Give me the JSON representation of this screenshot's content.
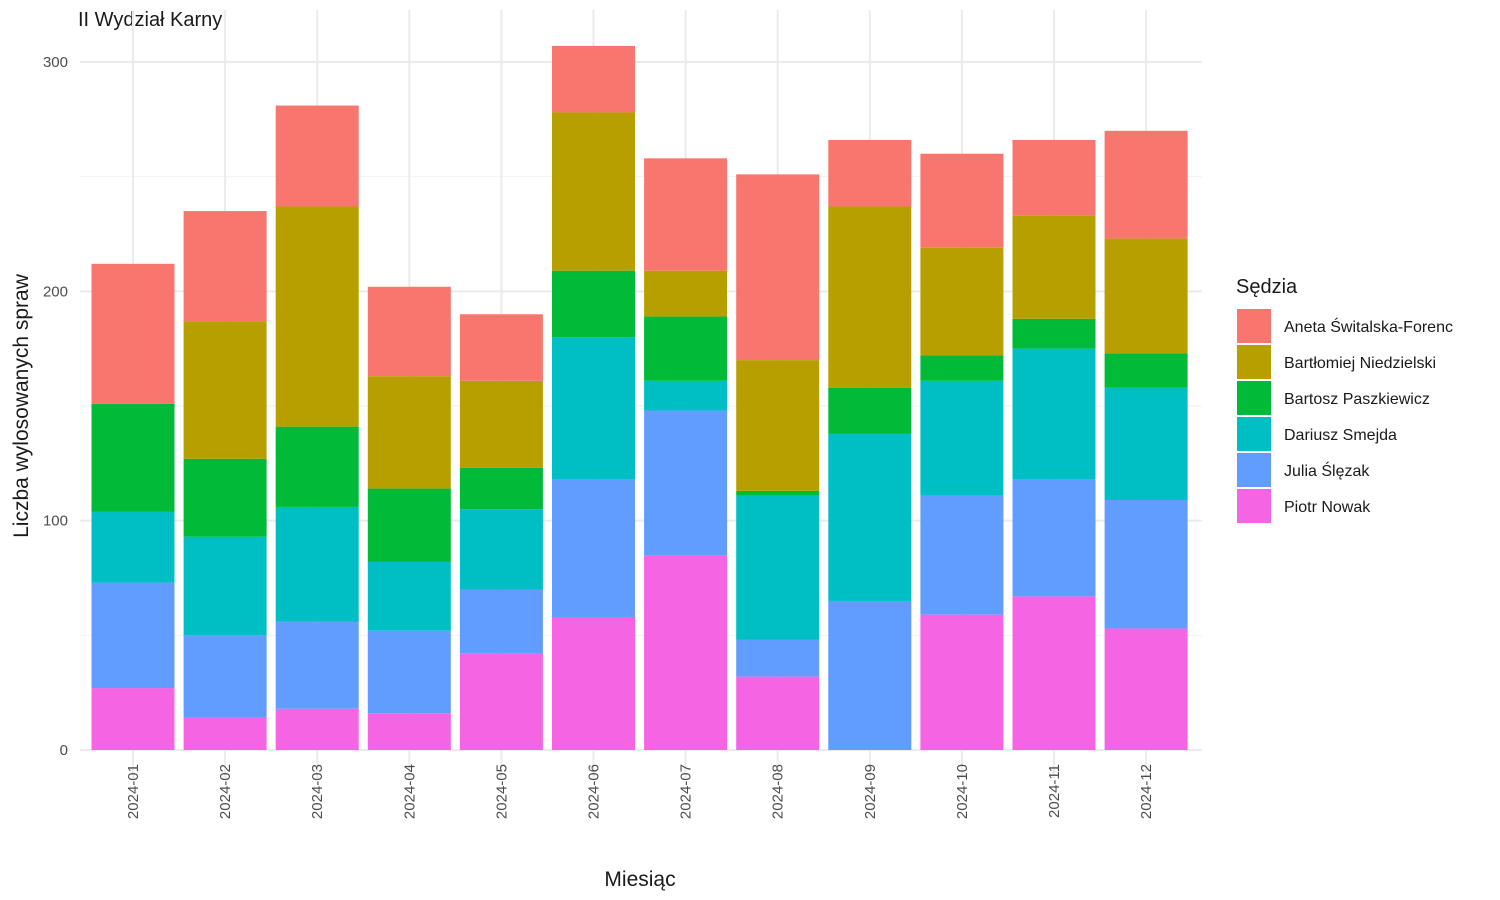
{
  "chart_data": {
    "type": "bar",
    "stacked": true,
    "title": "II Wydział Karny",
    "xlabel": "Miesiąc",
    "ylabel": "Liczba wylosowanych spraw",
    "ylim": [
      0,
      320
    ],
    "yticks": [
      0,
      100,
      200,
      300
    ],
    "grid": true,
    "legend_title": "Sędzia",
    "legend_position": "right",
    "categories": [
      "2024-01",
      "2024-02",
      "2024-03",
      "2024-04",
      "2024-05",
      "2024-06",
      "2024-07",
      "2024-08",
      "2024-09",
      "2024-10",
      "2024-11",
      "2024-12"
    ],
    "series": [
      {
        "name": "Piotr Nowak",
        "color": "#F564E3",
        "values": [
          27,
          14,
          18,
          16,
          42,
          58,
          85,
          32,
          0,
          59,
          67,
          53
        ]
      },
      {
        "name": "Julia Ślęzak",
        "color": "#619CFF",
        "values": [
          46,
          36,
          38,
          36,
          28,
          60,
          63,
          16,
          65,
          52,
          51,
          56
        ]
      },
      {
        "name": "Dariusz Smejda",
        "color": "#00BFC4",
        "values": [
          31,
          43,
          50,
          30,
          35,
          62,
          13,
          63,
          73,
          50,
          57,
          49
        ]
      },
      {
        "name": "Bartosz Paszkiewicz",
        "color": "#00BA38",
        "values": [
          47,
          34,
          35,
          32,
          18,
          29,
          28,
          2,
          20,
          11,
          13,
          15
        ]
      },
      {
        "name": "Bartłomiej Niedzielski",
        "color": "#B79F00",
        "values": [
          0,
          60,
          96,
          49,
          38,
          69,
          20,
          57,
          79,
          47,
          45,
          50
        ]
      },
      {
        "name": "Aneta Świtalska-Forenc",
        "color": "#F8766D",
        "values": [
          61,
          48,
          44,
          39,
          29,
          29,
          49,
          81,
          29,
          41,
          33,
          47
        ]
      }
    ],
    "legend_order": [
      "Aneta Świtalska-Forenc",
      "Bartłomiej Niedzielski",
      "Bartosz Paszkiewicz",
      "Dariusz Smejda",
      "Julia Ślęzak",
      "Piotr Nowak"
    ]
  }
}
